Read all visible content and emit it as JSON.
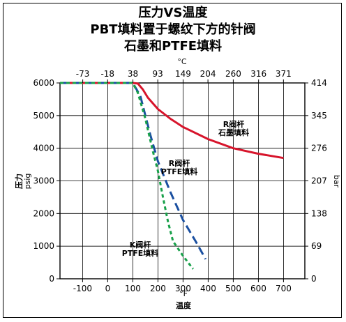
{
  "chart_data": {
    "type": "line",
    "title": [
      "压力VS温度",
      "PBT填料置于螺纹下方的针阀",
      "石墨和PTFE填料"
    ],
    "x_axis_bottom": {
      "unit": "°F",
      "label": "温度",
      "ticks": [
        -100,
        0,
        100,
        200,
        300,
        400,
        500,
        600,
        700
      ],
      "range": [
        -190,
        785
      ]
    },
    "x_axis_top": {
      "unit": "°C",
      "ticks": [
        -73,
        -18,
        38,
        93,
        149,
        204,
        260,
        316,
        371
      ],
      "range_f": [
        -190,
        785
      ]
    },
    "y_axis_left": {
      "label_line1": "压力",
      "label_line2": "psig",
      "ticks": [
        0,
        1000,
        2000,
        3000,
        4000,
        5000,
        6000
      ],
      "range": [
        0,
        6000
      ]
    },
    "y_axis_right": {
      "label": "bar",
      "ticks": [
        0,
        69,
        138,
        207,
        276,
        345,
        414
      ]
    },
    "grid": true,
    "series": [
      {
        "name": [
          "R阀杆",
          "石墨填料"
        ],
        "color": "#d7142b",
        "style": "solid",
        "points": [
          [
            -190,
            6000
          ],
          [
            100,
            6000
          ],
          [
            120,
            5980
          ],
          [
            140,
            5800
          ],
          [
            160,
            5550
          ],
          [
            200,
            5200
          ],
          [
            250,
            4900
          ],
          [
            300,
            4650
          ],
          [
            400,
            4280
          ],
          [
            500,
            4000
          ],
          [
            600,
            3830
          ],
          [
            700,
            3700
          ]
        ]
      },
      {
        "name": [
          "R阀杆",
          "PTFE填料"
        ],
        "color": "#1a4fa0",
        "style": "dashed",
        "points": [
          [
            -190,
            6000
          ],
          [
            100,
            6000
          ],
          [
            130,
            5600
          ],
          [
            150,
            5000
          ],
          [
            170,
            4400
          ],
          [
            200,
            3600
          ],
          [
            250,
            2650
          ],
          [
            300,
            1800
          ],
          [
            350,
            1150
          ],
          [
            390,
            600
          ]
        ]
      },
      {
        "name": [
          "K阀杆",
          "PTFE填料"
        ],
        "color": "#18a04a",
        "style": "dotted",
        "points": [
          [
            -190,
            6000
          ],
          [
            100,
            6000
          ],
          [
            120,
            5700
          ],
          [
            150,
            4900
          ],
          [
            180,
            3900
          ],
          [
            200,
            3300
          ],
          [
            220,
            2500
          ],
          [
            240,
            1750
          ],
          [
            260,
            1150
          ],
          [
            300,
            700
          ],
          [
            340,
            300
          ]
        ]
      }
    ]
  }
}
